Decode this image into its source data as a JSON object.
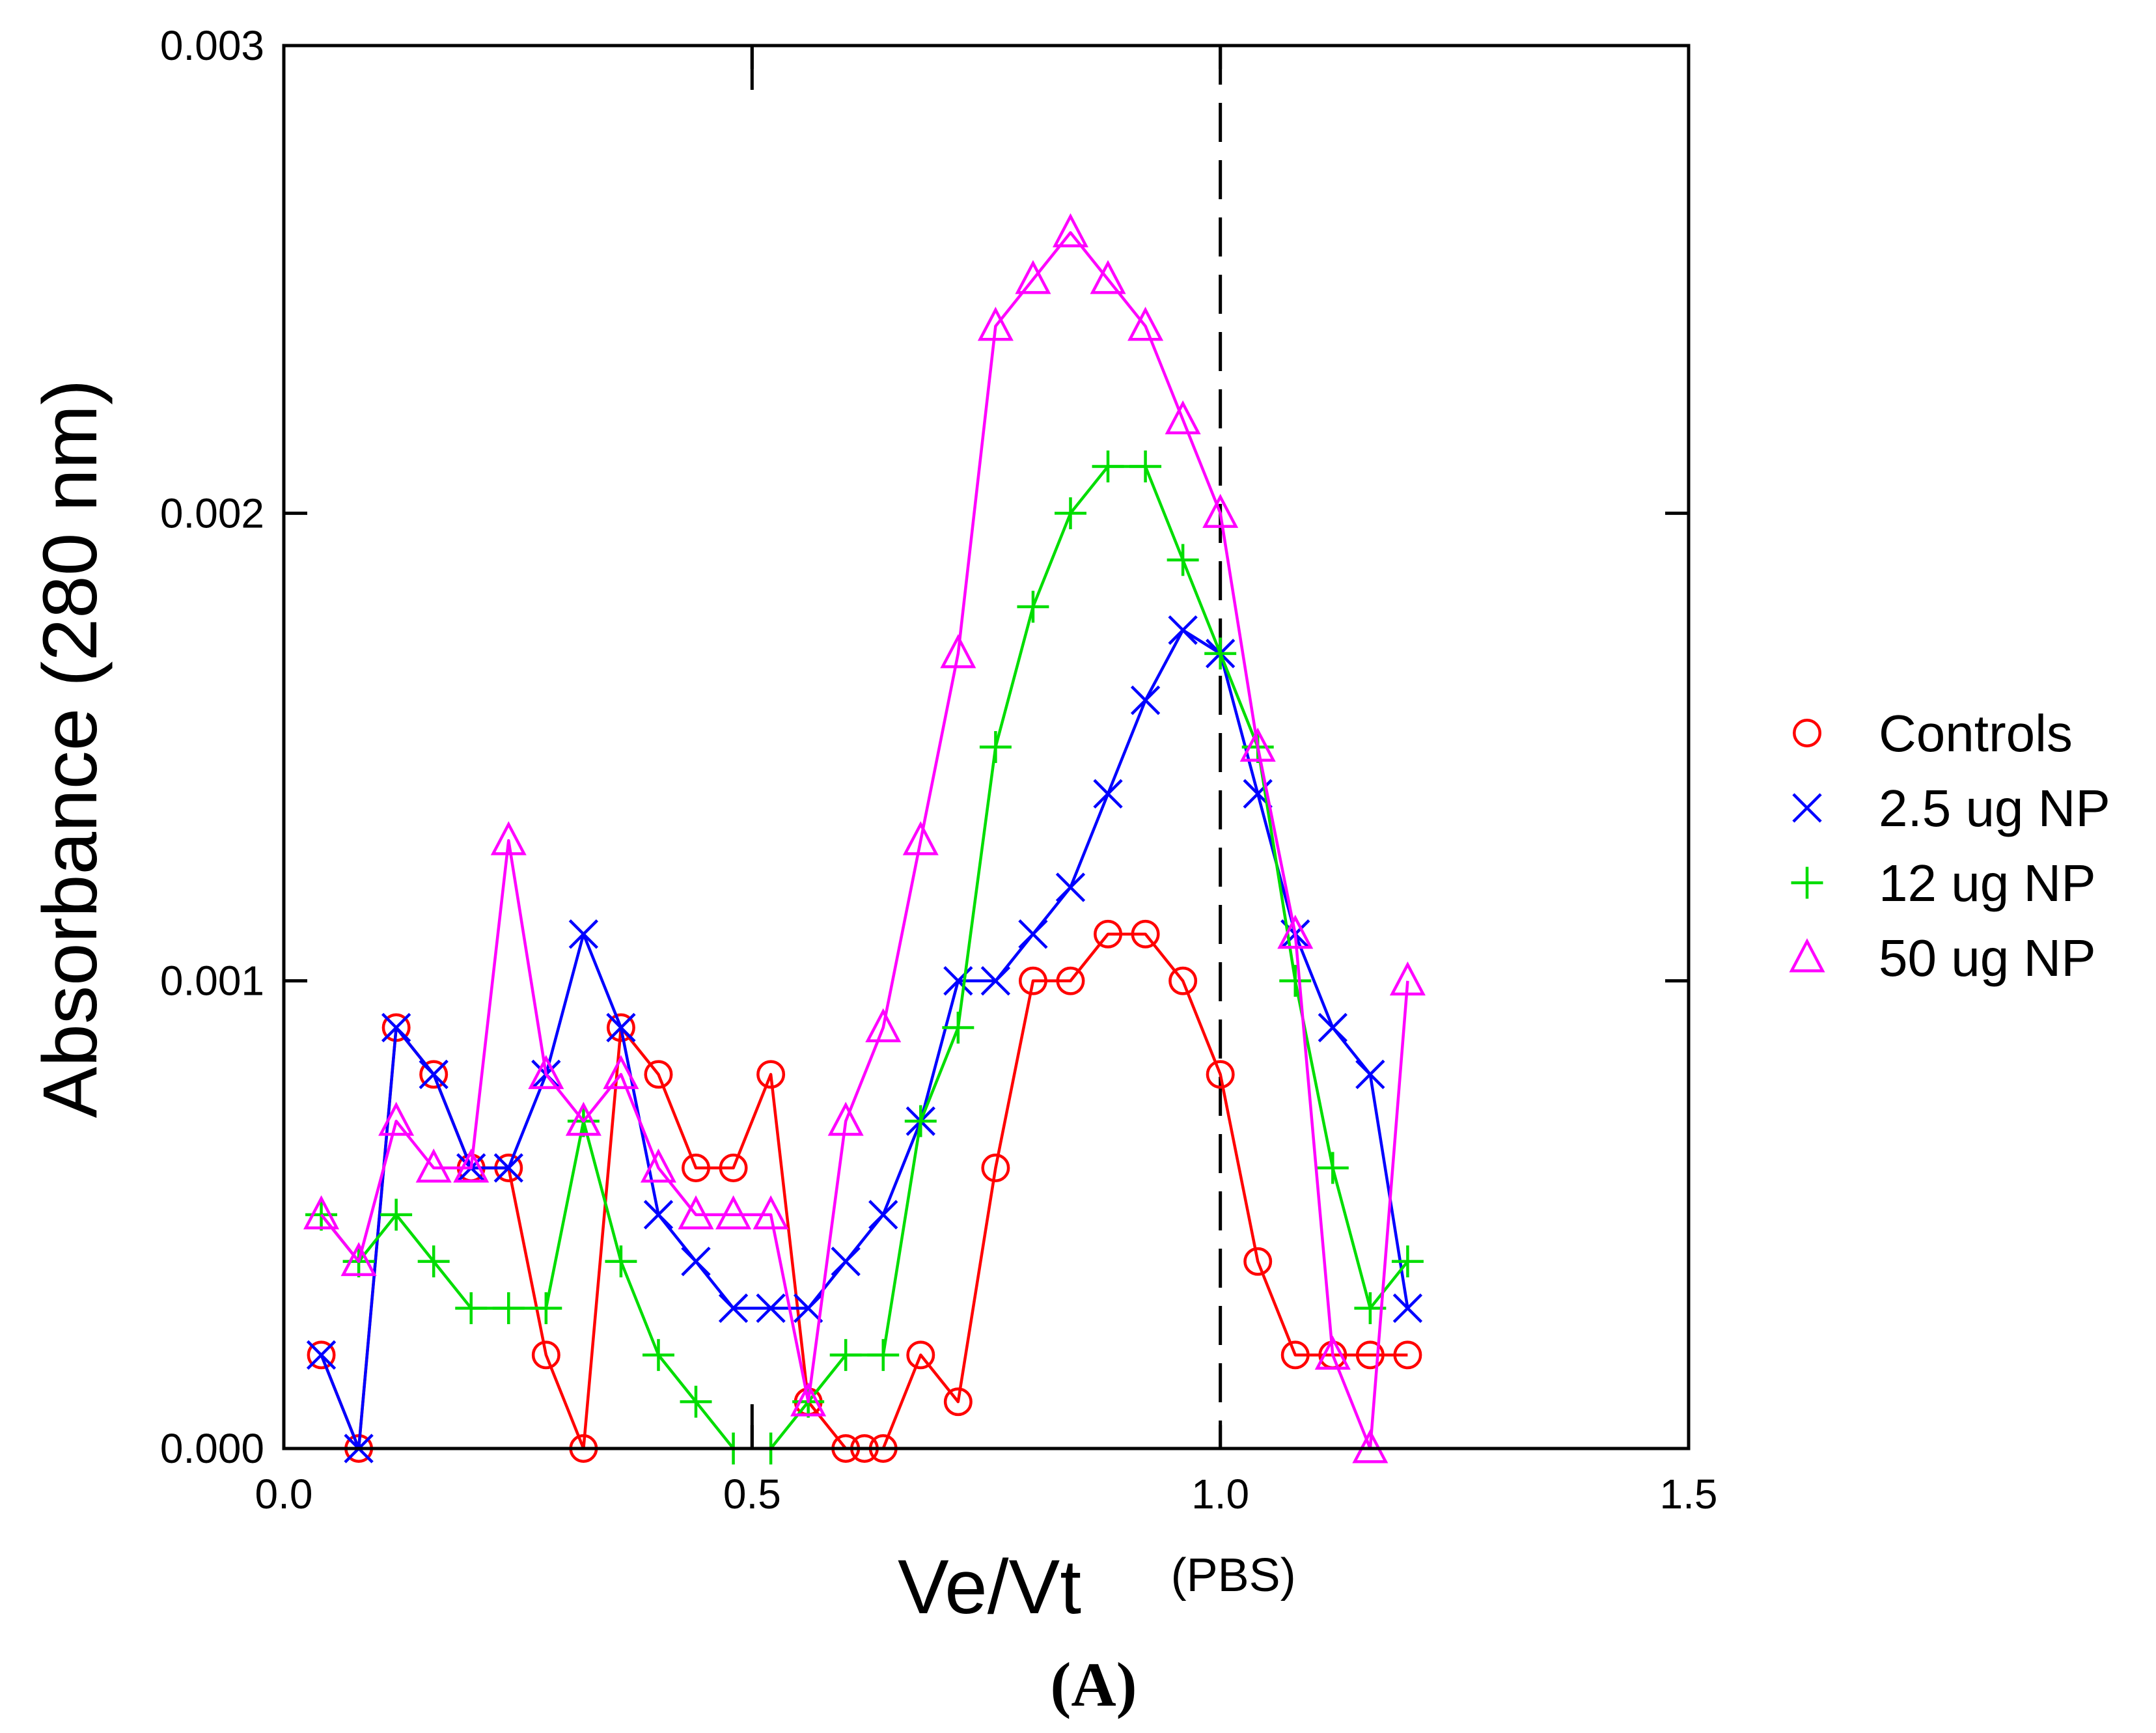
{
  "chart_data": {
    "type": "line",
    "xlabel": "Ve/Vt",
    "ylabel": "Absorbance (280 nm)",
    "panel_label": "(A)",
    "xlim": [
      0,
      1.5
    ],
    "ylim": [
      0,
      0.003
    ],
    "xticks": [
      0,
      0.5,
      1.0,
      1.5
    ],
    "xtick_labels": [
      "0.0",
      "0.5",
      "1.0",
      "1.5"
    ],
    "yticks": [
      0,
      0.001,
      0.002,
      0.003
    ],
    "ytick_labels": [
      "0.000",
      "0.001",
      "0.002",
      "0.003"
    ],
    "annotations": [
      {
        "text": "(PBS)",
        "x": 1.0
      }
    ],
    "reference_lines": [
      {
        "x": 1.0,
        "style": "dashed",
        "extent": "full"
      },
      {
        "x": 0.5,
        "style": "dashed",
        "extent": "ends"
      }
    ],
    "legend_position": "right",
    "series": [
      {
        "name": "Controls",
        "marker": "circle",
        "color": "#ff0000",
        "x": [
          0.04,
          0.08,
          0.12,
          0.16,
          0.2,
          0.24,
          0.28,
          0.32,
          0.36,
          0.4,
          0.44,
          0.48,
          0.52,
          0.56,
          0.6,
          0.62,
          0.64,
          0.68,
          0.72,
          0.76,
          0.8,
          0.84,
          0.88,
          0.92,
          0.96,
          1.0,
          1.04,
          1.08,
          1.12,
          1.16,
          1.2
        ],
        "y": [
          0.0002,
          0.0,
          0.0009,
          0.0008,
          0.0006,
          0.0006,
          0.0002,
          0.0,
          0.0009,
          0.0008,
          0.0006,
          0.0006,
          0.0008,
          0.0001,
          0.0,
          0.0,
          0.0,
          0.0002,
          0.0001,
          0.0006,
          0.001,
          0.001,
          0.0011,
          0.0011,
          0.001,
          0.0008,
          0.0004,
          0.0002,
          0.0002,
          0.0002,
          0.0002
        ]
      },
      {
        "name": "2.5 ug NP",
        "marker": "x",
        "color": "#0000ff",
        "x": [
          0.04,
          0.08,
          0.12,
          0.16,
          0.2,
          0.24,
          0.28,
          0.32,
          0.36,
          0.4,
          0.44,
          0.48,
          0.52,
          0.56,
          0.6,
          0.64,
          0.68,
          0.72,
          0.76,
          0.8,
          0.84,
          0.88,
          0.92,
          0.96,
          1.0,
          1.04,
          1.08,
          1.12,
          1.16,
          1.2
        ],
        "y": [
          0.0002,
          0.0,
          0.0009,
          0.0008,
          0.0006,
          0.0006,
          0.0008,
          0.0011,
          0.0009,
          0.0005,
          0.0004,
          0.0003,
          0.0003,
          0.0003,
          0.0004,
          0.0005,
          0.0007,
          0.001,
          0.001,
          0.0011,
          0.0012,
          0.0014,
          0.0016,
          0.00175,
          0.0017,
          0.0014,
          0.0011,
          0.0009,
          0.0008,
          0.0003
        ]
      },
      {
        "name": "12 ug NP",
        "marker": "plus",
        "color": "#00dd00",
        "x": [
          0.04,
          0.08,
          0.12,
          0.16,
          0.2,
          0.24,
          0.28,
          0.32,
          0.36,
          0.4,
          0.44,
          0.48,
          0.52,
          0.56,
          0.6,
          0.64,
          0.68,
          0.72,
          0.76,
          0.8,
          0.84,
          0.88,
          0.92,
          0.96,
          1.0,
          1.04,
          1.08,
          1.12,
          1.16,
          1.2
        ],
        "y": [
          0.0005,
          0.0004,
          0.0005,
          0.0004,
          0.0003,
          0.0003,
          0.0003,
          0.0007,
          0.0004,
          0.0002,
          0.0001,
          0.0,
          0.0,
          0.0001,
          0.0002,
          0.0002,
          0.0007,
          0.0009,
          0.0015,
          0.0018,
          0.002,
          0.0021,
          0.0021,
          0.0019,
          0.0017,
          0.0015,
          0.001,
          0.0006,
          0.0003,
          0.0004
        ]
      },
      {
        "name": "50 ug NP",
        "marker": "triangle",
        "color": "#ff00ff",
        "x": [
          0.04,
          0.08,
          0.12,
          0.16,
          0.2,
          0.24,
          0.28,
          0.32,
          0.36,
          0.4,
          0.44,
          0.48,
          0.52,
          0.56,
          0.6,
          0.64,
          0.68,
          0.72,
          0.76,
          0.8,
          0.84,
          0.88,
          0.92,
          0.96,
          1.0,
          1.04,
          1.08,
          1.12,
          1.16,
          1.2
        ],
        "y": [
          0.0005,
          0.0004,
          0.0007,
          0.0006,
          0.0006,
          0.0013,
          0.0008,
          0.0007,
          0.0008,
          0.0006,
          0.0005,
          0.0005,
          0.0005,
          0.0001,
          0.0007,
          0.0009,
          0.0013,
          0.0017,
          0.0024,
          0.0025,
          0.0026,
          0.0025,
          0.0024,
          0.0022,
          0.002,
          0.0015,
          0.0011,
          0.0002,
          0.0,
          0.001
        ]
      }
    ]
  }
}
